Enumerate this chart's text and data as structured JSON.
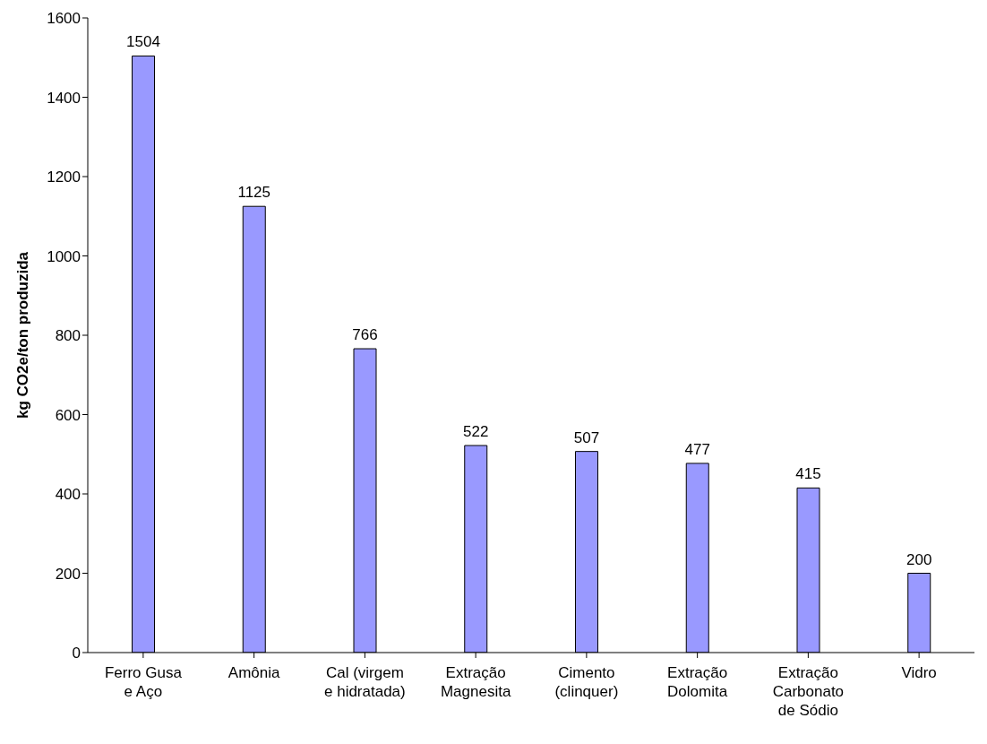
{
  "chart_data": {
    "type": "bar",
    "ylabel": "kg CO2e/ton produzida",
    "categories": [
      "Ferro Gusa\ne Aço",
      "Amônia",
      "Cal (virgem\ne hidratada)",
      "Extração\nMagnesita",
      "Cimento\n(clinquer)",
      "Extração\nDolomita",
      "Extração\nCarbonato\nde Sódio",
      "Vidro"
    ],
    "values": [
      1504,
      1125,
      766,
      522,
      507,
      477,
      415,
      200
    ],
    "color": "#9999ff",
    "ylim": [
      0,
      1600
    ],
    "yticks": [
      0,
      200,
      400,
      600,
      800,
      1000,
      1200,
      1400,
      1600
    ],
    "grid": false,
    "data_labels": true
  }
}
